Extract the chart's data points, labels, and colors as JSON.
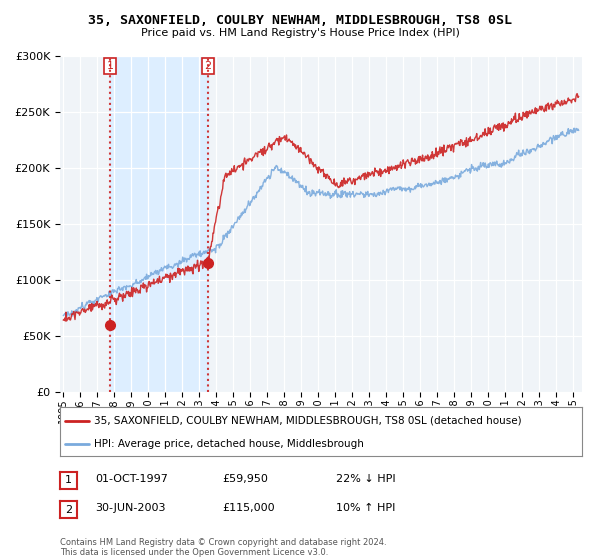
{
  "title1": "35, SAXONFIELD, COULBY NEWHAM, MIDDLESBROUGH, TS8 0SL",
  "title2": "Price paid vs. HM Land Registry's House Price Index (HPI)",
  "legend_line1": "35, SAXONFIELD, COULBY NEWHAM, MIDDLESBROUGH, TS8 0SL (detached house)",
  "legend_line2": "HPI: Average price, detached house, Middlesbrough",
  "sale1_label": "1",
  "sale1_date": "01-OCT-1997",
  "sale1_price": "£59,950",
  "sale1_hpi": "22% ↓ HPI",
  "sale2_label": "2",
  "sale2_date": "30-JUN-2003",
  "sale2_price": "£115,000",
  "sale2_hpi": "10% ↑ HPI",
  "footer": "Contains HM Land Registry data © Crown copyright and database right 2024.\nThis data is licensed under the Open Government Licence v3.0.",
  "sale1_x": 1997.75,
  "sale1_y": 59950,
  "sale2_x": 2003.5,
  "sale2_y": 115000,
  "red_color": "#cc2222",
  "blue_color": "#7aaadd",
  "shade_color": "#ddeeff",
  "background_color": "#f0f4f8",
  "ylim": [
    0,
    300000
  ],
  "xlim_start": 1994.8,
  "xlim_end": 2025.5
}
